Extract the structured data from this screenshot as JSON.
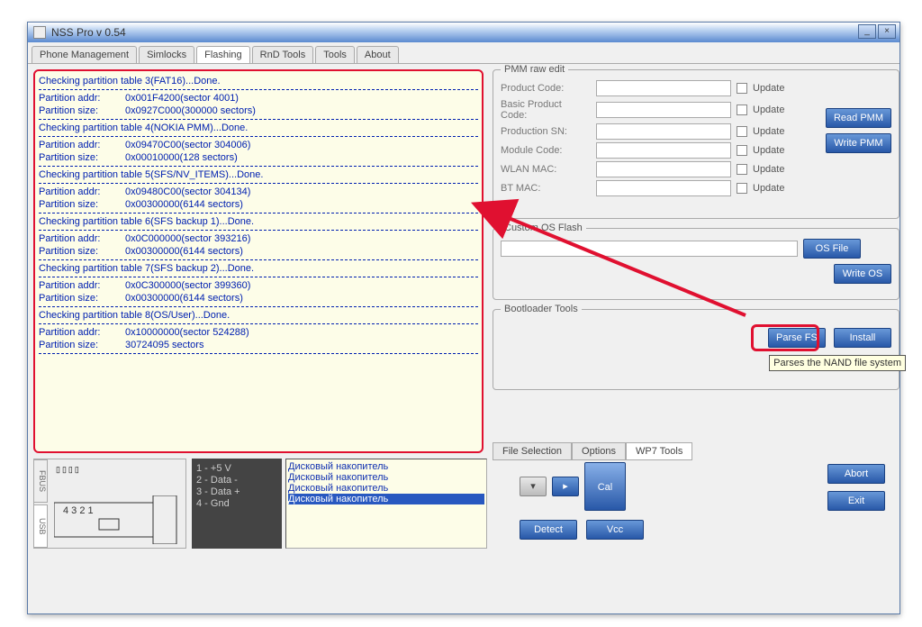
{
  "window": {
    "title": "NSS Pro v 0.54"
  },
  "tabs": [
    "Phone Management",
    "Simlocks",
    "Flashing",
    "RnD Tools",
    "Tools",
    "About"
  ],
  "active_tab": 2,
  "log": [
    {
      "type": "text",
      "text": "Checking partition table 3(FAT16)...Done."
    },
    {
      "type": "dash"
    },
    {
      "type": "pair",
      "a": "Partition addr:",
      "b": "0x001F4200(sector 4001)"
    },
    {
      "type": "pair",
      "a": "Partition size:",
      "b": "0x0927C000(300000 sectors)"
    },
    {
      "type": "dash"
    },
    {
      "type": "text",
      "text": "Checking partition table 4(NOKIA PMM)...Done."
    },
    {
      "type": "dash"
    },
    {
      "type": "pair",
      "a": "Partition addr:",
      "b": "0x09470C00(sector 304006)"
    },
    {
      "type": "pair",
      "a": "Partition size:",
      "b": "0x00010000(128 sectors)"
    },
    {
      "type": "dash"
    },
    {
      "type": "text",
      "text": "Checking partition table 5(SFS/NV_ITEMS)...Done."
    },
    {
      "type": "dash"
    },
    {
      "type": "pair",
      "a": "Partition addr:",
      "b": "0x09480C00(sector 304134)"
    },
    {
      "type": "pair",
      "a": "Partition size:",
      "b": "0x00300000(6144 sectors)"
    },
    {
      "type": "dash"
    },
    {
      "type": "text",
      "text": "Checking partition table 6(SFS backup 1)...Done."
    },
    {
      "type": "dash"
    },
    {
      "type": "pair",
      "a": "Partition addr:",
      "b": "0x0C000000(sector 393216)"
    },
    {
      "type": "pair",
      "a": "Partition size:",
      "b": "0x00300000(6144 sectors)"
    },
    {
      "type": "dash"
    },
    {
      "type": "text",
      "text": "Checking partition table 7(SFS backup 2)...Done."
    },
    {
      "type": "dash"
    },
    {
      "type": "pair",
      "a": "Partition addr:",
      "b": "0x0C300000(sector 399360)"
    },
    {
      "type": "pair",
      "a": "Partition size:",
      "b": "0x00300000(6144 sectors)"
    },
    {
      "type": "dash"
    },
    {
      "type": "text",
      "text": "Checking partition table 8(OS/User)...Done."
    },
    {
      "type": "dash"
    },
    {
      "type": "pair",
      "a": "Partition addr:",
      "b": "0x10000000(sector 524288)"
    },
    {
      "type": "pair",
      "a": "Partition size:",
      "b": "30724095 sectors"
    },
    {
      "type": "dash"
    }
  ],
  "pmm": {
    "title": "PMM raw edit",
    "rows": [
      {
        "label": "Product Code:",
        "update": "Update"
      },
      {
        "label": "Basic Product Code:",
        "update": "Update"
      },
      {
        "label": "Production SN:",
        "update": "Update"
      },
      {
        "label": "Module Code:",
        "update": "Update"
      },
      {
        "label": "WLAN MAC:",
        "update": "Update"
      },
      {
        "label": "BT MAC:",
        "update": "Update"
      }
    ],
    "read": "Read PMM",
    "write": "Write PMM"
  },
  "osflash": {
    "title": "Custom OS Flash",
    "osfile": "OS File",
    "writeos": "Write OS"
  },
  "boot": {
    "title": "Bootloader Tools",
    "parse": "Parse FS",
    "install": "Install",
    "tooltip": "Parses the NAND file system"
  },
  "subtabs": [
    "File Selection",
    "Options",
    "WP7 Tools"
  ],
  "active_subtab": 2,
  "pins": [
    "1 - +5 V",
    "2 - Data -",
    "3 - Data +",
    "4 - Gnd"
  ],
  "disks": [
    "Дисковый накопитель",
    "Дисковый накопитель",
    "Дисковый накопитель",
    "Дисковый накопитель"
  ],
  "disk_sel": 3,
  "bottom": {
    "detect": "Detect",
    "vcc": "Vcc",
    "cal": "Cal",
    "abort": "Abort",
    "exit": "Exit"
  },
  "usb": {
    "tab1": "FBUS",
    "tab2": "USB"
  }
}
